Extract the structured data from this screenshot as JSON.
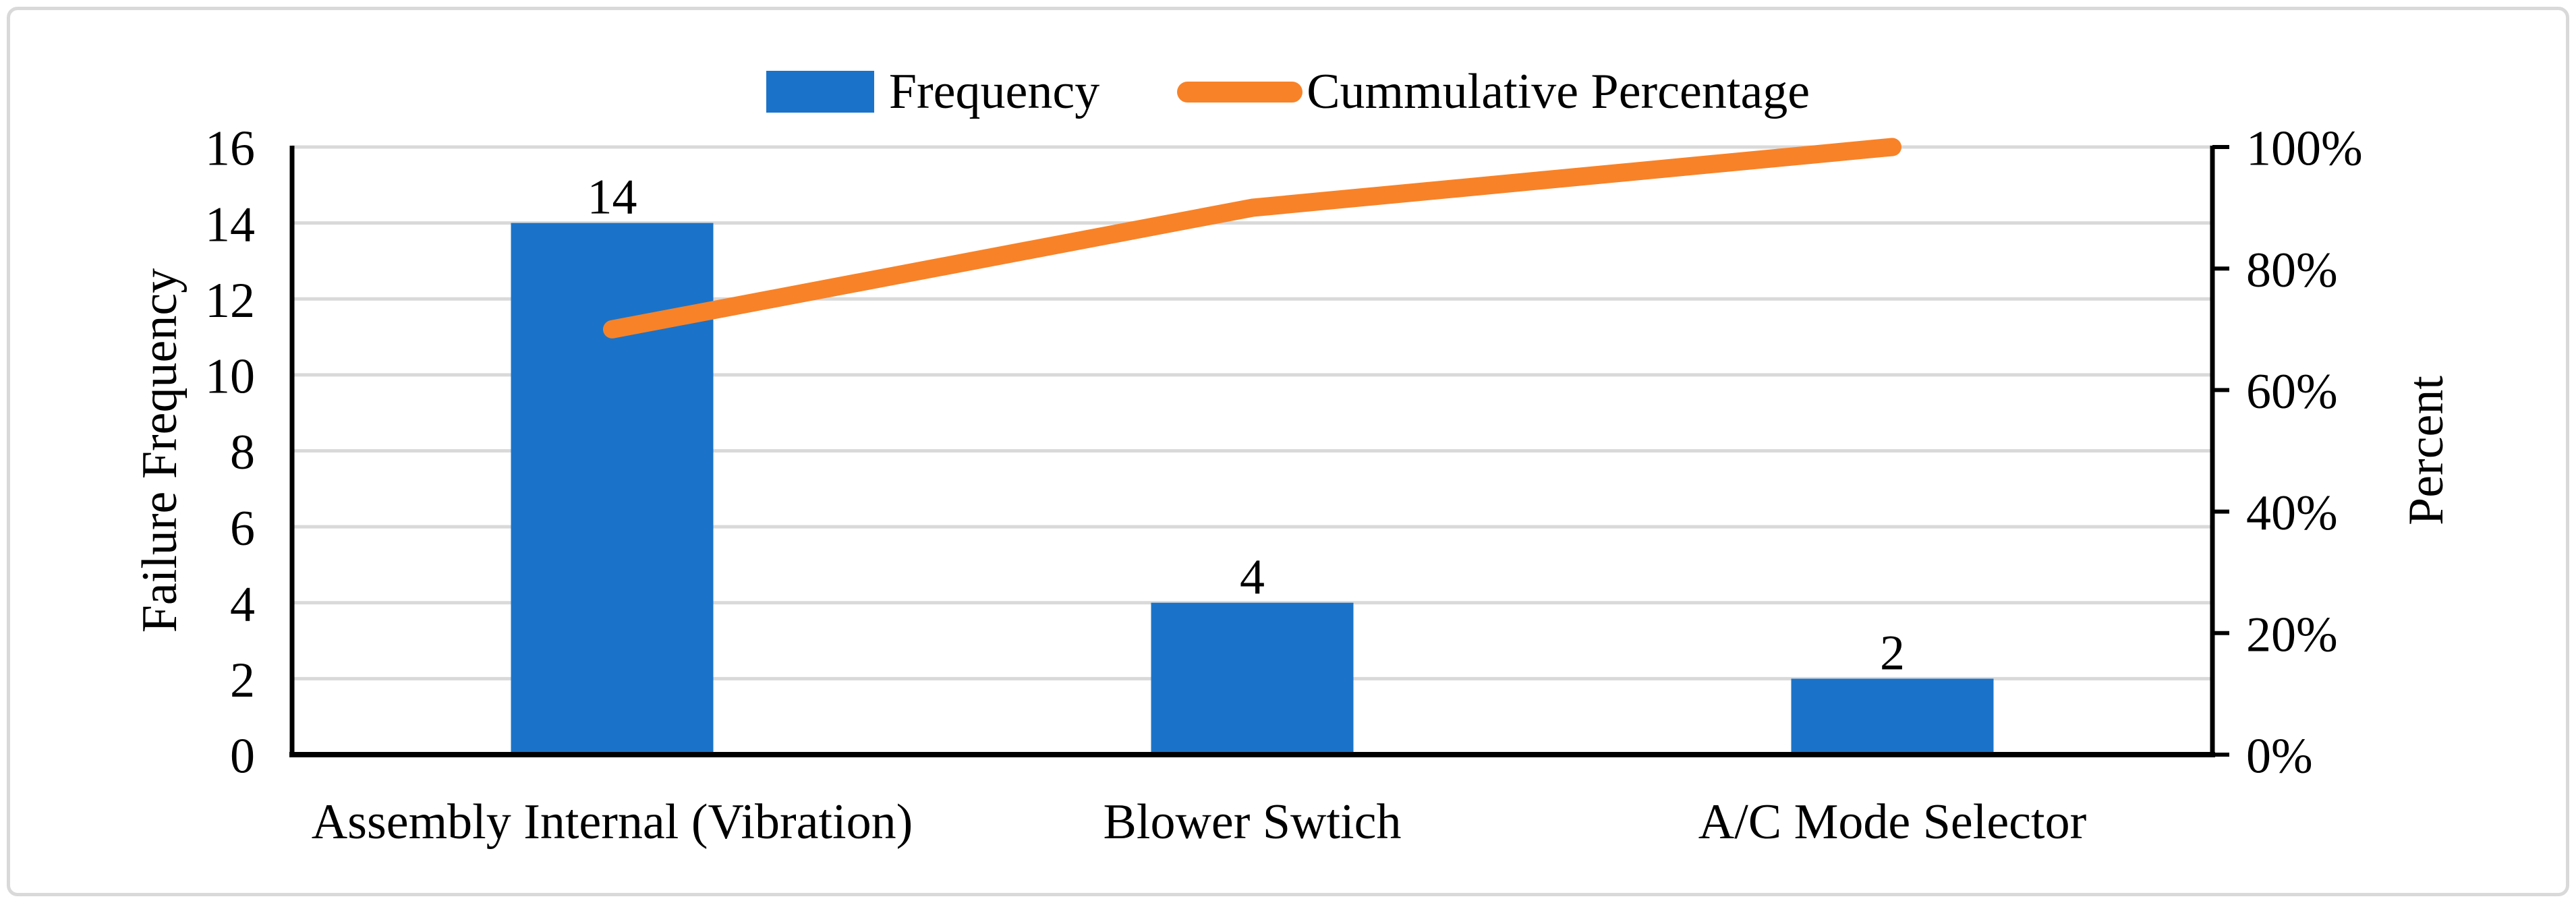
{
  "colors": {
    "bar": "#1A73C8",
    "line": "#F88228",
    "grid": "#D9D9D9",
    "axis": "#000000",
    "border": "#D9D9D9",
    "background": "#FFFFFF",
    "text": "#000000"
  },
  "chart_data": {
    "type": "bar",
    "subtype": "pareto (bar + cumulative line)",
    "categories": [
      "Assembly Internal  (Vibration)",
      "Blower Swtich",
      "A/C Mode Selector"
    ],
    "series": [
      {
        "name": "Frequency",
        "type": "bar",
        "axis": "left",
        "values": [
          14,
          4,
          2
        ],
        "data_labels": [
          "14",
          "4",
          "2"
        ],
        "color": "#1A73C8"
      },
      {
        "name": "Cummulative Percentage",
        "type": "line",
        "axis": "right",
        "unit": "%",
        "values": [
          70,
          90,
          100
        ],
        "color": "#F88228"
      }
    ],
    "left_axis": {
      "title": "Failure Frequency",
      "min": 0,
      "max": 16,
      "step": 2,
      "tick_labels": [
        "0",
        "2",
        "4",
        "6",
        "8",
        "10",
        "12",
        "14",
        "16"
      ]
    },
    "right_axis": {
      "title": "Percent",
      "min": 0,
      "max": 100,
      "step": 20,
      "tick_labels": [
        "0%",
        "20%",
        "40%",
        "60%",
        "80%",
        "100%"
      ]
    },
    "title": "",
    "grid": "horizontal, light gray, every 2 units",
    "legend_position": "top center"
  }
}
